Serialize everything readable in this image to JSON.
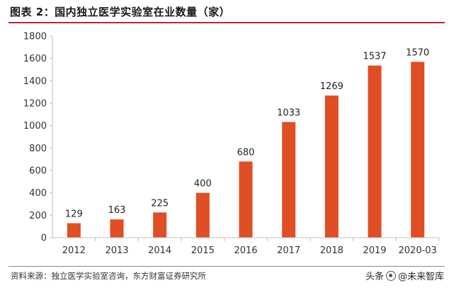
{
  "header": {
    "title": "图表 2：国内独立医学实验室在业数量（家）"
  },
  "footer": {
    "source": "资料来源：独立医学实验室咨询，东方财富证券研究所",
    "watermark_prefix": "头条",
    "watermark_text": "@未来智库",
    "watermark_icon": "circle-logo-icon"
  },
  "colors": {
    "bar": "#e04e23",
    "axis": "#bfbfbf",
    "title_rule": "#c1272d"
  },
  "chart_data": {
    "type": "bar",
    "title": "",
    "xlabel": "",
    "ylabel": "",
    "categories": [
      "2012",
      "2013",
      "2014",
      "2015",
      "2016",
      "2017",
      "2018",
      "2019",
      "2020-03"
    ],
    "values": [
      129,
      163,
      225,
      400,
      680,
      1033,
      1269,
      1537,
      1570
    ],
    "ylim": [
      0,
      1800
    ],
    "yticks": [
      0,
      200,
      400,
      600,
      800,
      1000,
      1200,
      1400,
      1600,
      1800
    ],
    "grid": false,
    "legend": "none"
  }
}
